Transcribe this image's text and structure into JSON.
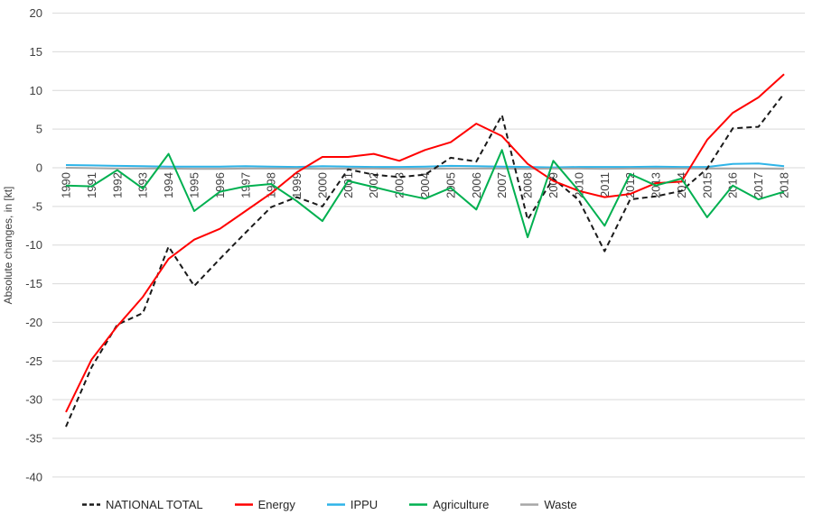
{
  "chart_data": {
    "type": "line",
    "title": "",
    "xlabel": "",
    "ylabel": "Absolute changes, in [kt]",
    "ylim": [
      -40,
      20
    ],
    "yticks": [
      20,
      15,
      10,
      5,
      0,
      -5,
      -10,
      -15,
      -20,
      -25,
      -30,
      -35,
      -40
    ],
    "grid": true,
    "legend_position": "bottom",
    "categories": [
      "1990",
      "1991",
      "1992",
      "1993",
      "1994",
      "1995",
      "1996",
      "1997",
      "1998",
      "1999",
      "2000",
      "2001",
      "2002",
      "2003",
      "2004",
      "2005",
      "2006",
      "2007",
      "2008",
      "2009",
      "2010",
      "2011",
      "2012",
      "2013",
      "2014",
      "2015",
      "2016",
      "2017",
      "2018"
    ],
    "series": [
      {
        "name": "NATIONAL TOTAL",
        "color": "#1a1a1a",
        "dash": "6 4",
        "values": [
          -33.5,
          -25.8,
          -20.3,
          -18.8,
          -10.2,
          -15.3,
          -11.8,
          -8.4,
          -5.1,
          -3.8,
          -5.0,
          -0.2,
          -0.9,
          -1.2,
          -0.9,
          1.3,
          0.8,
          6.8,
          -6.7,
          -1.4,
          -4.2,
          -10.8,
          -4.1,
          -3.7,
          -3.0,
          -0.1,
          5.1,
          5.3,
          9.6
        ]
      },
      {
        "name": "Energy",
        "color": "#ff0000",
        "dash": "",
        "values": [
          -31.6,
          -24.8,
          -20.5,
          -16.7,
          -11.8,
          -9.3,
          -7.9,
          -5.6,
          -3.3,
          -0.6,
          1.4,
          1.4,
          1.8,
          0.9,
          2.3,
          3.3,
          5.7,
          4.1,
          0.5,
          -1.7,
          -3.0,
          -3.8,
          -3.4,
          -2.0,
          -1.8,
          3.6,
          7.1,
          9.1,
          12.1
        ]
      },
      {
        "name": "IPPU",
        "color": "#2eb4e8",
        "dash": "",
        "values": [
          0.35,
          0.3,
          0.25,
          0.2,
          0.15,
          0.15,
          0.15,
          0.2,
          0.15,
          0.1,
          0.2,
          0.15,
          0.1,
          0.1,
          0.15,
          0.25,
          0.2,
          0.15,
          0.1,
          0.05,
          0.1,
          0.1,
          0.1,
          0.15,
          0.1,
          0.1,
          0.5,
          0.55,
          0.2
        ]
      },
      {
        "name": "Agriculture",
        "color": "#00b050",
        "dash": "",
        "values": [
          -2.3,
          -2.4,
          -0.3,
          -2.7,
          1.8,
          -5.6,
          -3.1,
          -2.4,
          -2.1,
          -4.3,
          -6.9,
          -1.7,
          -2.5,
          -3.3,
          -4.0,
          -2.6,
          -5.4,
          2.3,
          -9.0,
          0.9,
          -3.0,
          -7.5,
          -0.8,
          -2.3,
          -1.4,
          -6.4,
          -2.3,
          -4.1,
          -3.1
        ]
      },
      {
        "name": "Waste",
        "color": "#a6a6a6",
        "dash": "",
        "values": [
          0.0,
          -0.05,
          -0.1,
          -0.1,
          -0.1,
          -0.15,
          -0.15,
          -0.1,
          -0.1,
          -0.1,
          -0.15,
          -0.1,
          -0.1,
          -0.15,
          -0.15,
          -0.1,
          -0.1,
          -0.1,
          -0.15,
          -0.1,
          -0.1,
          -0.15,
          -0.1,
          -0.1,
          -0.1,
          -0.1,
          -0.1,
          -0.1,
          -0.15
        ]
      }
    ]
  }
}
